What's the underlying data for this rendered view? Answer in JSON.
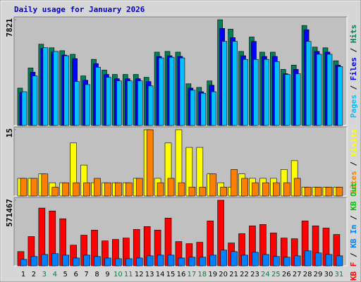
{
  "title": "Daily usage for January 2026",
  "legend_separator": " / ",
  "categories": [
    1,
    2,
    3,
    4,
    5,
    6,
    7,
    8,
    9,
    10,
    11,
    12,
    13,
    14,
    15,
    16,
    17,
    18,
    19,
    20,
    21,
    22,
    23,
    24,
    25,
    26,
    27,
    28,
    29,
    30,
    31
  ],
  "weekend_categories": [
    3,
    4,
    10,
    11,
    17,
    18,
    24,
    25,
    31
  ],
  "weekday_color": "#000000",
  "weekend_color": "#008040",
  "chart_data": [
    {
      "type": "bar",
      "ylim": [
        0,
        7821
      ],
      "yticks": [
        7821
      ],
      "legend": [
        {
          "name": "Pages",
          "color": "#00c0ff"
        },
        {
          "name": "Files",
          "color": "#0000ff"
        },
        {
          "name": "Hits",
          "color": "#00805c"
        }
      ],
      "series": [
        {
          "color": "#00805c",
          "values": [
            2766,
            4256,
            6012,
            5746,
            5533,
            5267,
            3671,
            4894,
            4096,
            3777,
            3777,
            3777,
            3564,
            5426,
            5480,
            5426,
            3086,
            2820,
            3298,
            7821,
            7129,
            5480,
            6544,
            5426,
            5426,
            4150,
            4469,
            7395,
            5799,
            5746,
            4788
          ]
        },
        {
          "color": "#0000ff",
          "values": [
            2450,
            3940,
            5700,
            5430,
            5210,
            4950,
            3350,
            4580,
            3780,
            3460,
            3460,
            3460,
            3250,
            5110,
            5160,
            5110,
            2770,
            2500,
            2980,
            7180,
            6500,
            5160,
            6220,
            5110,
            5110,
            3830,
            4150,
            7080,
            5480,
            5430,
            4470
          ]
        },
        {
          "color": "#00c0ff",
          "values": [
            2500,
            3670,
            5750,
            5480,
            5160,
            3250,
            3030,
            4310,
            3560,
            3300,
            3300,
            3300,
            2930,
            5000,
            5050,
            5000,
            2610,
            2390,
            2500,
            6220,
            6220,
            4890,
            4890,
            4890,
            4730,
            3780,
            3830,
            6220,
            5270,
            5270,
            4360
          ]
        }
      ]
    },
    {
      "type": "bar",
      "ylim": [
        0,
        15
      ],
      "yticks": [
        15
      ],
      "legend": [
        {
          "name": "Sites",
          "color": "#ff8000"
        },
        {
          "name": "Visits",
          "color": "#ffff00"
        }
      ],
      "series": [
        {
          "color": "#ffff00",
          "values": [
            4,
            4,
            5,
            3,
            3,
            12,
            7,
            3,
            3,
            3,
            3,
            4,
            15,
            4,
            12,
            15,
            11,
            11,
            5,
            3,
            2,
            5,
            4,
            4,
            4,
            6,
            8,
            2,
            2,
            2,
            2
          ]
        },
        {
          "color": "#ff8000",
          "values": [
            4,
            4,
            5,
            2,
            3,
            3,
            3,
            4,
            3,
            3,
            3,
            4,
            15,
            3,
            4,
            3,
            2,
            2,
            5,
            2,
            6,
            4,
            3,
            3,
            3,
            3,
            4,
            2,
            2,
            2,
            2
          ]
        }
      ]
    },
    {
      "type": "bar",
      "ylim": [
        0,
        571467
      ],
      "yticks": [
        571467
      ],
      "legend": [
        {
          "name": "KB F",
          "color": "#ff0000"
        },
        {
          "name": "KB In",
          "color": "#0080ff"
        },
        {
          "name": "KB Out",
          "color": "#00c000"
        }
      ],
      "series": [
        {
          "color": "#ff0000",
          "values": [
            124000,
            255000,
            503000,
            478000,
            410000,
            180000,
            267000,
            311000,
            217000,
            230000,
            242000,
            317000,
            342000,
            311000,
            416000,
            211000,
            193000,
            205000,
            391000,
            571467,
            199000,
            280000,
            348000,
            360000,
            286000,
            242000,
            236000,
            391000,
            348000,
            329000,
            273000
          ]
        },
        {
          "color": "#0080ff",
          "values": [
            56000,
            81000,
            99000,
            106000,
            93000,
            68000,
            93000,
            81000,
            68000,
            62000,
            62000,
            68000,
            87000,
            93000,
            93000,
            68000,
            75000,
            75000,
            93000,
            137000,
            124000,
            93000,
            118000,
            99000,
            81000,
            75000,
            87000,
            130000,
            112000,
            99000,
            87000
          ]
        }
      ]
    }
  ]
}
